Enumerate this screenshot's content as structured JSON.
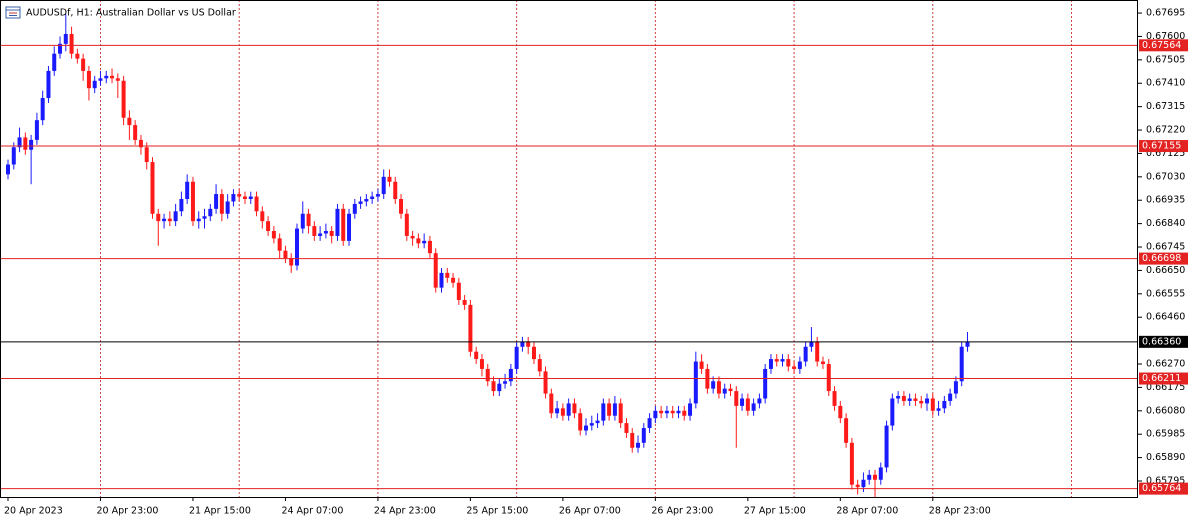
{
  "chart_data": {
    "type": "candlestick",
    "title": "AUDUSDf, H1:  Australian Dollar vs US Dollar",
    "categories": [
      "20 Apr 2023",
      null,
      null,
      null,
      null,
      null,
      null,
      null,
      null,
      null,
      null,
      null,
      null,
      null,
      null,
      null,
      "20 Apr 23:00",
      null,
      null,
      null,
      null,
      null,
      null,
      null,
      null,
      null,
      null,
      null,
      null,
      null,
      null,
      null,
      "21 Apr 15:00",
      null,
      null,
      null,
      null,
      null,
      null,
      null,
      null,
      null,
      null,
      null,
      null,
      null,
      null,
      null,
      "24 Apr 07:00",
      null,
      null,
      null,
      null,
      null,
      null,
      null,
      null,
      null,
      null,
      null,
      null,
      null,
      null,
      null,
      "24 Apr 23:00",
      null,
      null,
      null,
      null,
      null,
      null,
      null,
      null,
      null,
      null,
      null,
      null,
      null,
      null,
      null,
      "25 Apr 15:00",
      null,
      null,
      null,
      null,
      null,
      null,
      null,
      null,
      null,
      null,
      null,
      null,
      null,
      null,
      null,
      "26 Apr 07:00",
      null,
      null,
      null,
      null,
      null,
      null,
      null,
      null,
      null,
      null,
      null,
      null,
      null,
      null,
      null,
      "26 Apr 23:00",
      null,
      null,
      null,
      null,
      null,
      null,
      null,
      null,
      null,
      null,
      null,
      null,
      null,
      null,
      null,
      "27 Apr 15:00",
      null,
      null,
      null,
      null,
      null,
      null,
      null,
      null,
      null,
      null,
      null,
      null,
      null,
      null,
      null,
      "28 Apr 07:00",
      null,
      null,
      null,
      null,
      null,
      null,
      null,
      null,
      null,
      null,
      null,
      null,
      null,
      null,
      null,
      "28 Apr 23:00",
      null,
      null,
      null,
      null,
      null,
      null
    ],
    "open": [
      0.6704,
      0.6708,
      0.6715,
      0.6719,
      0.6714,
      0.6718,
      0.6726,
      0.6735,
      0.6746,
      0.6753,
      0.6757,
      0.6761,
      0.6753,
      0.6751,
      0.6746,
      0.6739,
      0.6742,
      0.6743,
      0.6744,
      0.6743,
      0.6742,
      0.6727,
      0.6724,
      0.6718,
      0.6715,
      0.6709,
      0.6688,
      0.6685,
      0.6686,
      0.6685,
      0.6689,
      0.6694,
      0.6701,
      0.6685,
      0.6686,
      0.6687,
      0.669,
      0.6696,
      0.6688,
      0.6693,
      0.6696,
      0.6695,
      0.6694,
      0.6695,
      0.6689,
      0.6685,
      0.6681,
      0.6678,
      0.6673,
      0.667,
      0.6667,
      0.6682,
      0.6688,
      0.6683,
      0.6679,
      0.668,
      0.6681,
      0.6679,
      0.669,
      0.6677,
      0.6688,
      0.6692,
      0.6693,
      0.6694,
      0.6695,
      0.6696,
      0.6703,
      0.6701,
      0.6694,
      0.6688,
      0.6679,
      0.6678,
      0.6676,
      0.6677,
      0.6672,
      0.6658,
      0.6664,
      0.6662,
      0.666,
      0.6653,
      0.6651,
      0.6632,
      0.6629,
      0.6625,
      0.662,
      0.6616,
      0.6619,
      0.662,
      0.6625,
      0.6634,
      0.6636,
      0.6634,
      0.6629,
      0.6624,
      0.6615,
      0.6607,
      0.6609,
      0.6606,
      0.6611,
      0.6607,
      0.66,
      0.6602,
      0.6603,
      0.6604,
      0.6611,
      0.6606,
      0.6611,
      0.6603,
      0.6599,
      0.6593,
      0.6595,
      0.6601,
      0.6605,
      0.6608,
      0.6607,
      0.6608,
      0.6607,
      0.6608,
      0.6606,
      0.6611,
      0.6628,
      0.6625,
      0.6617,
      0.662,
      0.6615,
      0.6617,
      0.6616,
      0.661,
      0.6613,
      0.6608,
      0.6611,
      0.6613,
      0.6625,
      0.6629,
      0.6628,
      0.6629,
      0.6626,
      0.6625,
      0.6628,
      0.6634,
      0.6636,
      0.6628,
      0.6627,
      0.6616,
      0.661,
      0.6605,
      0.6595,
      0.6578,
      0.6577,
      0.658,
      0.6582,
      0.658,
      0.6585,
      0.6602,
      0.6613,
      0.6614,
      0.6612,
      0.6613,
      0.6612,
      0.6611,
      0.6613,
      0.6608,
      0.6609,
      0.6612,
      0.6615,
      0.662,
      0.6634
    ],
    "high": [
      0.671,
      0.6717,
      0.6723,
      0.6721,
      0.672,
      0.6729,
      0.6738,
      0.6748,
      0.6756,
      0.676,
      0.6769,
      0.6764,
      0.6755,
      0.6753,
      0.6748,
      0.6744,
      0.6746,
      0.6746,
      0.6747,
      0.6745,
      0.6744,
      0.673,
      0.6726,
      0.672,
      0.6717,
      0.6711,
      0.669,
      0.6688,
      0.6689,
      0.6692,
      0.6697,
      0.6704,
      0.6703,
      0.6689,
      0.669,
      0.6692,
      0.67,
      0.6698,
      0.6696,
      0.6698,
      0.6698,
      0.6697,
      0.6697,
      0.6697,
      0.6691,
      0.6687,
      0.6683,
      0.668,
      0.6675,
      0.6672,
      0.6684,
      0.6693,
      0.669,
      0.6685,
      0.6683,
      0.6684,
      0.6683,
      0.6692,
      0.6692,
      0.669,
      0.6694,
      0.6695,
      0.6696,
      0.6697,
      0.6698,
      0.6706,
      0.6706,
      0.6703,
      0.6696,
      0.669,
      0.6681,
      0.668,
      0.668,
      0.6679,
      0.6674,
      0.6666,
      0.6666,
      0.6664,
      0.6662,
      0.6655,
      0.6653,
      0.6634,
      0.6631,
      0.6627,
      0.6622,
      0.6621,
      0.6623,
      0.6627,
      0.6636,
      0.6638,
      0.6638,
      0.6636,
      0.6631,
      0.6626,
      0.6617,
      0.6612,
      0.6611,
      0.6613,
      0.6613,
      0.6609,
      0.6605,
      0.6606,
      0.6607,
      0.6613,
      0.6613,
      0.6614,
      0.6613,
      0.6605,
      0.6601,
      0.6598,
      0.6603,
      0.6607,
      0.661,
      0.661,
      0.661,
      0.661,
      0.661,
      0.661,
      0.6613,
      0.6632,
      0.6631,
      0.6627,
      0.6622,
      0.6622,
      0.6619,
      0.6619,
      0.6618,
      0.6615,
      0.6615,
      0.6613,
      0.6615,
      0.6627,
      0.6631,
      0.6631,
      0.6631,
      0.6631,
      0.6628,
      0.663,
      0.6636,
      0.6642,
      0.6638,
      0.663,
      0.6629,
      0.6618,
      0.6612,
      0.6607,
      0.6597,
      0.658,
      0.6583,
      0.6584,
      0.6584,
      0.6587,
      0.6604,
      0.6615,
      0.6616,
      0.6616,
      0.6615,
      0.6615,
      0.6614,
      0.6615,
      0.6615,
      0.6612,
      0.6614,
      0.6617,
      0.6622,
      0.6636,
      0.664
    ],
    "low": [
      0.6702,
      0.6706,
      0.6713,
      0.6712,
      0.67,
      0.6716,
      0.6724,
      0.6733,
      0.6744,
      0.6751,
      0.6754,
      0.6751,
      0.6749,
      0.6742,
      0.6734,
      0.6737,
      0.674,
      0.6741,
      0.6741,
      0.6735,
      0.6724,
      0.6718,
      0.6716,
      0.6712,
      0.6706,
      0.6686,
      0.6675,
      0.6682,
      0.6683,
      0.6683,
      0.6687,
      0.6692,
      0.6683,
      0.6682,
      0.6682,
      0.6685,
      0.6688,
      0.6685,
      0.6686,
      0.6691,
      0.6693,
      0.6692,
      0.6692,
      0.6687,
      0.6682,
      0.6679,
      0.6676,
      0.667,
      0.6668,
      0.6664,
      0.6665,
      0.668,
      0.668,
      0.6677,
      0.6677,
      0.6678,
      0.6676,
      0.6677,
      0.6675,
      0.6675,
      0.6686,
      0.669,
      0.6691,
      0.6692,
      0.6693,
      0.6694,
      0.6699,
      0.6692,
      0.6686,
      0.6677,
      0.6675,
      0.6674,
      0.6674,
      0.667,
      0.6656,
      0.6656,
      0.666,
      0.6658,
      0.6651,
      0.6649,
      0.663,
      0.6627,
      0.6622,
      0.6618,
      0.6614,
      0.6614,
      0.6617,
      0.6618,
      0.6623,
      0.6632,
      0.6631,
      0.6627,
      0.6622,
      0.6613,
      0.6605,
      0.6605,
      0.6604,
      0.6604,
      0.6605,
      0.6598,
      0.6598,
      0.66,
      0.6601,
      0.6602,
      0.6604,
      0.6604,
      0.6601,
      0.6597,
      0.6591,
      0.6591,
      0.6593,
      0.6599,
      0.6603,
      0.6605,
      0.6605,
      0.6605,
      0.6605,
      0.6604,
      0.6604,
      0.6609,
      0.6623,
      0.6615,
      0.6615,
      0.6613,
      0.6613,
      0.6614,
      0.6593,
      0.6608,
      0.6606,
      0.6606,
      0.6609,
      0.6611,
      0.6623,
      0.6626,
      0.6626,
      0.6624,
      0.6623,
      0.6623,
      0.6626,
      0.6632,
      0.6626,
      0.6625,
      0.6614,
      0.6608,
      0.6603,
      0.6593,
      0.6576,
      0.6574,
      0.6575,
      0.6578,
      0.6573,
      0.6578,
      0.6583,
      0.66,
      0.6611,
      0.661,
      0.661,
      0.661,
      0.6609,
      0.6608,
      0.6606,
      0.6606,
      0.6607,
      0.661,
      0.6613,
      0.6618,
      0.6632
    ],
    "close": [
      0.6708,
      0.6715,
      0.6719,
      0.6714,
      0.6718,
      0.6726,
      0.6735,
      0.6746,
      0.6753,
      0.6757,
      0.6761,
      0.6753,
      0.6751,
      0.6746,
      0.6739,
      0.6742,
      0.6743,
      0.6744,
      0.6743,
      0.6742,
      0.6727,
      0.6724,
      0.6718,
      0.6715,
      0.6709,
      0.6688,
      0.6685,
      0.6686,
      0.6685,
      0.6689,
      0.6694,
      0.6701,
      0.6685,
      0.6686,
      0.6687,
      0.669,
      0.6696,
      0.6688,
      0.6693,
      0.6696,
      0.6695,
      0.6694,
      0.6695,
      0.6689,
      0.6685,
      0.6681,
      0.6678,
      0.6673,
      0.667,
      0.6667,
      0.6682,
      0.6688,
      0.6683,
      0.6679,
      0.668,
      0.6681,
      0.6679,
      0.669,
      0.6677,
      0.6688,
      0.6692,
      0.6693,
      0.6694,
      0.6695,
      0.6696,
      0.6703,
      0.6701,
      0.6694,
      0.6688,
      0.6679,
      0.6678,
      0.6676,
      0.6677,
      0.6672,
      0.6658,
      0.6664,
      0.6662,
      0.666,
      0.6653,
      0.6651,
      0.6632,
      0.6629,
      0.6625,
      0.662,
      0.6616,
      0.6619,
      0.662,
      0.6625,
      0.6634,
      0.6636,
      0.6634,
      0.6629,
      0.6624,
      0.6615,
      0.6607,
      0.6609,
      0.6606,
      0.6611,
      0.6607,
      0.66,
      0.6602,
      0.6603,
      0.6604,
      0.6611,
      0.6606,
      0.6611,
      0.6603,
      0.6599,
      0.6593,
      0.6595,
      0.6601,
      0.6605,
      0.6608,
      0.6607,
      0.6608,
      0.6607,
      0.6608,
      0.6606,
      0.6611,
      0.6628,
      0.6625,
      0.6617,
      0.662,
      0.6615,
      0.6617,
      0.6616,
      0.661,
      0.6613,
      0.6608,
      0.6611,
      0.6613,
      0.6625,
      0.6629,
      0.6628,
      0.6629,
      0.6626,
      0.6625,
      0.6628,
      0.6634,
      0.6636,
      0.6628,
      0.6627,
      0.6616,
      0.661,
      0.6605,
      0.6595,
      0.6578,
      0.6577,
      0.658,
      0.6582,
      0.658,
      0.6585,
      0.6602,
      0.6613,
      0.6614,
      0.6612,
      0.6613,
      0.6612,
      0.6611,
      0.6613,
      0.6608,
      0.6609,
      0.6612,
      0.6615,
      0.662,
      0.6634,
      0.6636
    ],
    "up_color": "#1a1aff",
    "down_color": "#ff1a1a",
    "ylim": [
      0.6573,
      0.67748
    ],
    "yticks": [
      {
        "value": 0.67695,
        "label": "0.67695"
      },
      {
        "value": 0.676,
        "label": "0.67600"
      },
      {
        "value": 0.67505,
        "label": "0.67505"
      },
      {
        "value": 0.6741,
        "label": "0.67410"
      },
      {
        "value": 0.67315,
        "label": "0.67315"
      },
      {
        "value": 0.6722,
        "label": "0.67220"
      },
      {
        "value": 0.67125,
        "label": "0.67125"
      },
      {
        "value": 0.6703,
        "label": "0.67030"
      },
      {
        "value": 0.66935,
        "label": "0.66935"
      },
      {
        "value": 0.6684,
        "label": "0.66840"
      },
      {
        "value": 0.66745,
        "label": "0.66745"
      },
      {
        "value": 0.6665,
        "label": "0.66650"
      },
      {
        "value": 0.66555,
        "label": "0.66555"
      },
      {
        "value": 0.6646,
        "label": "0.66460"
      },
      {
        "value": 0.6627,
        "label": "0.66270"
      },
      {
        "value": 0.66175,
        "label": "0.66175"
      },
      {
        "value": 0.6608,
        "label": "0.66080"
      },
      {
        "value": 0.65985,
        "label": "0.65985"
      },
      {
        "value": 0.6589,
        "label": "0.65890"
      },
      {
        "value": 0.65795,
        "label": "0.65795"
      }
    ],
    "hlines": [
      {
        "value": 0.67564,
        "label": "0.67564",
        "color": "#e32222"
      },
      {
        "value": 0.67155,
        "label": "0.67155",
        "color": "#e32222"
      },
      {
        "value": 0.66698,
        "label": "0.66698",
        "color": "#e32222"
      },
      {
        "value": 0.6636,
        "label": "0.66360",
        "color": "#000000"
      },
      {
        "value": 0.66211,
        "label": "0.66211",
        "color": "#e32222"
      },
      {
        "value": 0.65764,
        "label": "0.65764",
        "color": "#e32222"
      }
    ],
    "grid": true
  }
}
